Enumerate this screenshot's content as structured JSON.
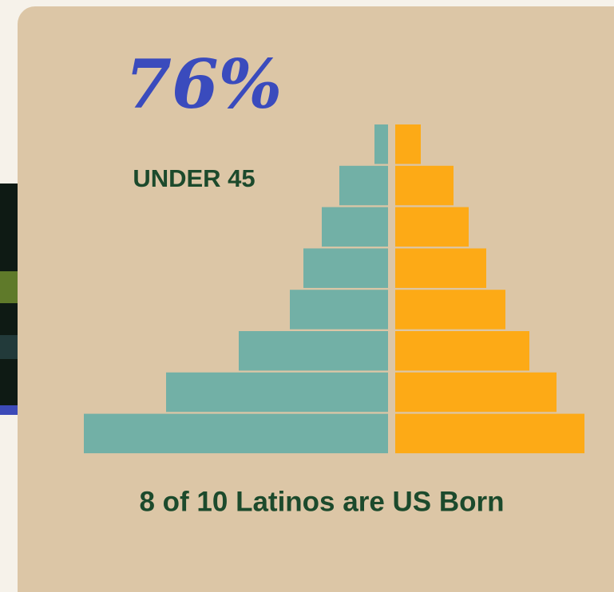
{
  "chart_data": {
    "type": "pyramid",
    "headline": "76%",
    "subheadline": "UNDER 45",
    "caption": "8 of 10 Latinos are US Born",
    "series": [
      {
        "color": "#72b0a6",
        "values": [
          17,
          61,
          83,
          106,
          123,
          187,
          278,
          381
        ]
      },
      {
        "color": "#fdaa16",
        "values": [
          32,
          73,
          92,
          114,
          138,
          168,
          202,
          237
        ]
      }
    ]
  }
}
